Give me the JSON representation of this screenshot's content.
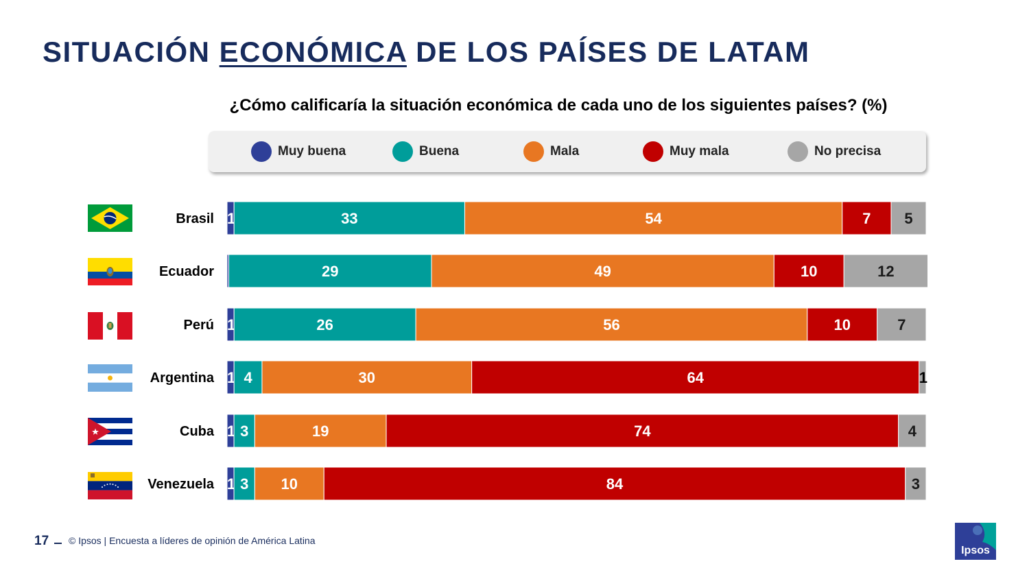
{
  "page": {
    "title_part1": "SITUACIÓN ",
    "title_part2": "ECONÓMICA",
    "title_part3": " DE LOS PAÍSES DE LATAM",
    "page_number": "17",
    "footer": "© Ipsos | Encuesta a líderes de opinión de América Latina",
    "logo_text": "Ipsos"
  },
  "chart_data": {
    "type": "bar",
    "orientation": "horizontal",
    "stacked": true,
    "title": "¿Cómo calificaría la situación económica de cada uno de los siguientes países? (%)",
    "categories": [
      "Brasil",
      "Ecuador",
      "Perú",
      "Argentina",
      "Cuba",
      "Venezuela"
    ],
    "category_icons": [
      "brazil-flag",
      "ecuador-flag",
      "peru-flag",
      "argentina-flag",
      "cuba-flag",
      "venezuela-flag"
    ],
    "series": [
      {
        "name": "Muy buena",
        "color": "#2e3f98",
        "values": [
          1,
          0,
          1,
          1,
          1,
          1
        ],
        "labels": [
          "1",
          "",
          "1",
          "1",
          "1",
          "1"
        ]
      },
      {
        "name": "Buena",
        "color": "#009d9a",
        "values": [
          33,
          29,
          26,
          4,
          3,
          3
        ],
        "labels": [
          "33",
          "29",
          "26",
          "4",
          "3",
          "3"
        ]
      },
      {
        "name": "Mala",
        "color": "#e87722",
        "values": [
          54,
          49,
          56,
          30,
          19,
          10
        ],
        "labels": [
          "54",
          "49",
          "56",
          "30",
          "19",
          "10"
        ]
      },
      {
        "name": "Muy mala",
        "color": "#c00000",
        "values": [
          7,
          10,
          10,
          64,
          74,
          84
        ],
        "labels": [
          "7",
          "10",
          "10",
          "64",
          "74",
          "84"
        ]
      },
      {
        "name": "No precisa",
        "color": "#a6a6a6",
        "values": [
          5,
          12,
          7,
          1,
          4,
          3
        ],
        "labels": [
          "5",
          "12",
          "7",
          "1",
          "4",
          "3"
        ]
      }
    ],
    "legend": "top",
    "grid": false
  }
}
